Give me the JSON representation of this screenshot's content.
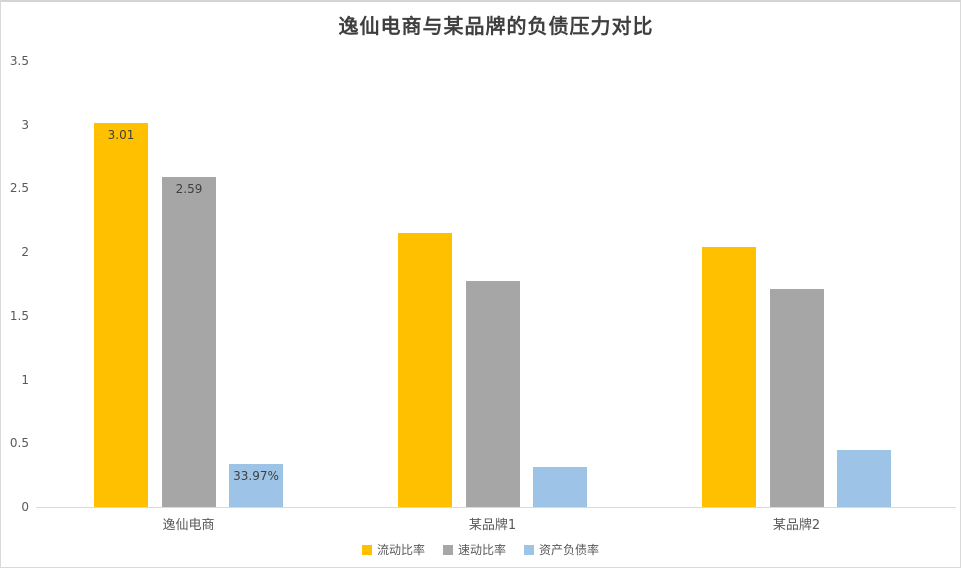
{
  "chart_data": {
    "type": "bar",
    "title": "逸仙电商与某品牌的负债压力对比",
    "categories": [
      "逸仙电商",
      "某品牌1",
      "某品牌2"
    ],
    "series": [
      {
        "name": "流动比率",
        "color": "#FFC000",
        "values": [
          3.01,
          2.15,
          2.04
        ],
        "labels": [
          "3.01",
          "",
          ""
        ]
      },
      {
        "name": "速动比率",
        "color": "#A6A6A6",
        "values": [
          2.59,
          1.77,
          1.71
        ],
        "labels": [
          "2.59",
          "",
          ""
        ]
      },
      {
        "name": "资产负债率",
        "color": "#9DC3E6",
        "values": [
          0.3397,
          0.31,
          0.45
        ],
        "labels": [
          "33.97%",
          "",
          ""
        ]
      }
    ],
    "y_ticks": [
      0,
      0.5,
      1,
      1.5,
      2,
      2.5,
      3,
      3.5
    ],
    "ylim": [
      0,
      3.5
    ],
    "xlabel": "",
    "ylabel": "",
    "grid": false,
    "legend_position": "bottom"
  },
  "colors": {
    "title_text": "#3F3F3F",
    "axis_text": "#595959",
    "axis_line": "#D9D9D9",
    "border": "#D9D9D9",
    "data_label_text": "#404040",
    "background": "#FFFFFF"
  }
}
